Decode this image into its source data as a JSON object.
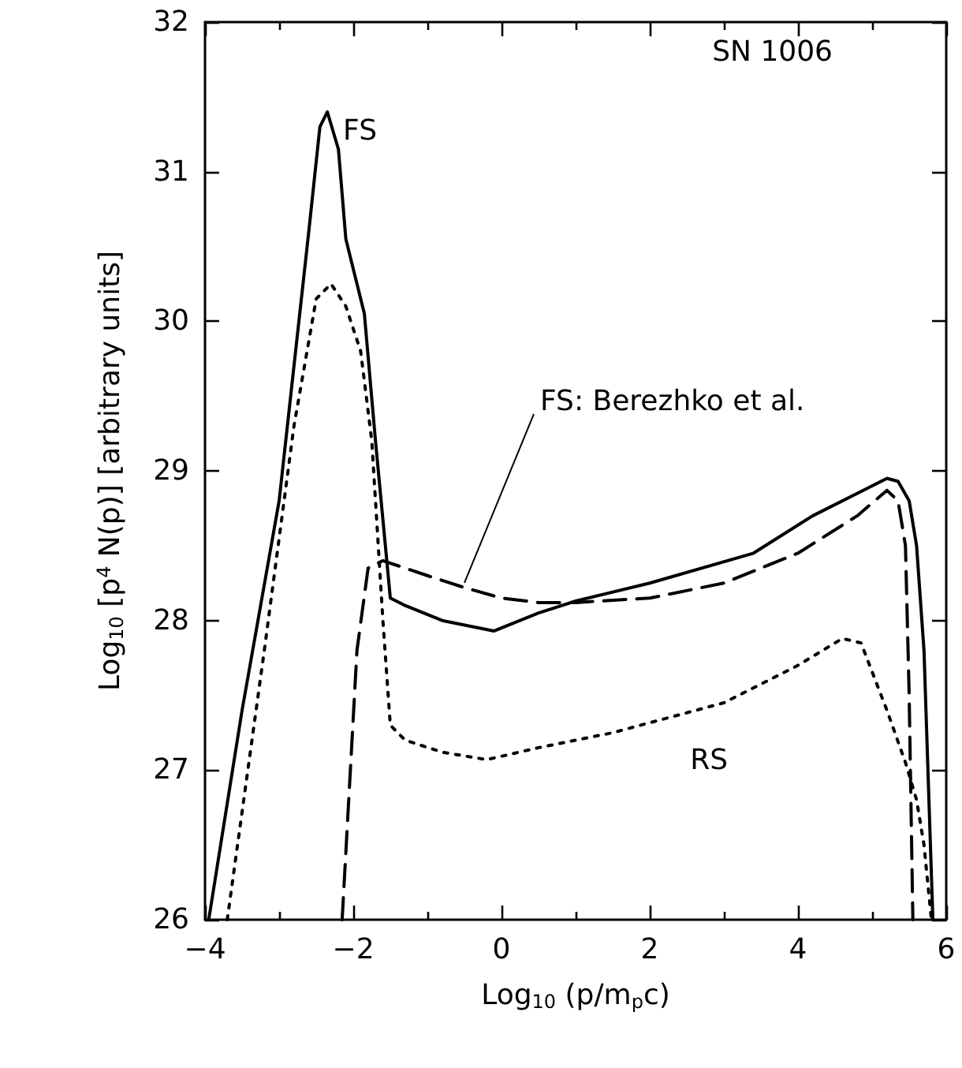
{
  "chart_data": {
    "type": "line",
    "xlabel": "Log$_{10}$ (p/m$_{p}$c)",
    "ylabel": "Log$_{10}$ [p$^{4}$ N(p)] [arbitrary units]",
    "xlim": [
      -4,
      6
    ],
    "xticks": [
      -4,
      -2,
      0,
      2,
      4,
      6
    ],
    "ylim": [
      26,
      32
    ],
    "yticks": [
      26,
      27,
      28,
      29,
      30,
      31,
      32
    ],
    "grid": false,
    "marker": "none",
    "series": [
      {
        "color": "#000000",
        "line_style": "solid",
        "x": [
          -3.95,
          -3.5,
          -3,
          -2.6,
          -2.45,
          -2.35,
          -2.2,
          -2.1,
          -1.85,
          -1.7,
          -1.5,
          -1.3,
          -0.8,
          -0.1,
          0.5,
          1,
          2,
          3.4,
          4.2,
          4.8,
          5.2,
          5.35,
          5.5,
          5.6,
          5.7,
          5.82
        ],
        "values": [
          26,
          27.4,
          28.8,
          30.6,
          31.3,
          31.4,
          31.15,
          30.55,
          30.05,
          29.2,
          28.15,
          28.1,
          28.0,
          27.93,
          28.05,
          28.13,
          28.25,
          28.45,
          28.7,
          28.85,
          28.95,
          28.93,
          28.8,
          28.5,
          27.8,
          26
        ]
      },
      {
        "color": "#000000",
        "line_style": "dashed",
        "x": [
          -2.15,
          -2.05,
          -1.95,
          -1.8,
          -1.6,
          -1,
          -0.5,
          0,
          0.5,
          1,
          2,
          3,
          4,
          4.8,
          5.2,
          5.35,
          5.45,
          5.5,
          5.55
        ],
        "values": [
          26,
          26.9,
          27.8,
          28.35,
          28.4,
          28.3,
          28.22,
          28.15,
          28.12,
          28.12,
          28.15,
          28.25,
          28.45,
          28.7,
          28.87,
          28.8,
          28.5,
          27.5,
          26
        ]
      },
      {
        "color": "#000000",
        "line_style": "dotted",
        "x": [
          -3.7,
          -3.2,
          -2.8,
          -2.5,
          -2.3,
          -2.1,
          -1.9,
          -1.75,
          -1.6,
          -1.5,
          -1.3,
          -0.8,
          -0.2,
          0.5,
          1.5,
          3,
          4,
          4.6,
          4.85,
          5.2,
          5.45,
          5.6,
          5.7,
          5.8
        ],
        "values": [
          26,
          27.8,
          29.3,
          30.15,
          30.25,
          30.1,
          29.8,
          29.2,
          28.0,
          27.3,
          27.2,
          27.12,
          27.07,
          27.15,
          27.25,
          27.45,
          27.7,
          27.88,
          27.85,
          27.4,
          27.05,
          26.8,
          26.5,
          26
        ]
      }
    ],
    "annotations": [
      "SN 1006",
      {
        "text": "FS",
        "x": -2.35,
        "y": 31.4
      },
      {
        "text": "FS: Berezhko et al.",
        "x": -0.5,
        "y": 28.22
      },
      {
        "text": "RS",
        "x": 2.8,
        "y": 27.4
      }
    ]
  }
}
